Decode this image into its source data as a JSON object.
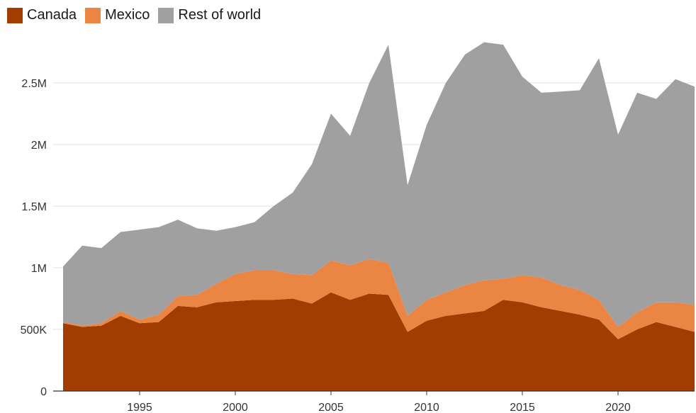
{
  "chart_data": {
    "type": "area",
    "stacked": true,
    "title": "",
    "xlabel": "",
    "ylabel": "",
    "x": [
      1991,
      1992,
      1993,
      1994,
      1995,
      1996,
      1997,
      1998,
      1999,
      2000,
      2001,
      2002,
      2003,
      2004,
      2005,
      2006,
      2007,
      2008,
      2009,
      2010,
      2011,
      2012,
      2013,
      2014,
      2015,
      2016,
      2017,
      2018,
      2019,
      2020,
      2021,
      2022,
      2023,
      2024
    ],
    "xlim": [
      1991,
      2024
    ],
    "ylim": [
      0,
      2800000
    ],
    "x_ticks": [
      {
        "value": 1995,
        "label": "1995"
      },
      {
        "value": 2000,
        "label": "2000"
      },
      {
        "value": 2005,
        "label": "2005"
      },
      {
        "value": 2010,
        "label": "2010"
      },
      {
        "value": 2015,
        "label": "2015"
      },
      {
        "value": 2020,
        "label": "2020"
      }
    ],
    "y_ticks": [
      {
        "value": 0,
        "label": "0"
      },
      {
        "value": 500000,
        "label": "500K"
      },
      {
        "value": 1000000,
        "label": "1M"
      },
      {
        "value": 1500000,
        "label": "1.5M"
      },
      {
        "value": 2000000,
        "label": "2M"
      },
      {
        "value": 2500000,
        "label": "2.5M"
      }
    ],
    "grid": true,
    "legend_position": "top-left",
    "series": [
      {
        "name": "Canada",
        "color": "#a33c00",
        "values": [
          550000,
          520000,
          530000,
          610000,
          550000,
          560000,
          690000,
          680000,
          720000,
          730000,
          740000,
          740000,
          750000,
          710000,
          800000,
          740000,
          790000,
          780000,
          480000,
          570000,
          610000,
          630000,
          650000,
          740000,
          720000,
          680000,
          650000,
          620000,
          580000,
          420000,
          500000,
          560000,
          520000,
          480000
        ]
      },
      {
        "name": "Mexico",
        "color": "#eb8544",
        "values": [
          10000,
          10000,
          20000,
          40000,
          30000,
          60000,
          80000,
          100000,
          150000,
          220000,
          240000,
          240000,
          200000,
          230000,
          260000,
          280000,
          280000,
          260000,
          130000,
          170000,
          190000,
          230000,
          250000,
          170000,
          220000,
          240000,
          210000,
          200000,
          160000,
          100000,
          140000,
          160000,
          200000,
          220000
        ]
      },
      {
        "name": "Rest of world",
        "color": "#a0a0a0",
        "values": [
          450000,
          650000,
          610000,
          640000,
          730000,
          710000,
          620000,
          540000,
          430000,
          380000,
          390000,
          520000,
          660000,
          900000,
          1190000,
          1050000,
          1430000,
          1770000,
          1060000,
          1420000,
          1700000,
          1870000,
          1930000,
          1900000,
          1610000,
          1500000,
          1570000,
          1620000,
          1960000,
          1560000,
          1780000,
          1650000,
          1810000,
          1770000
        ]
      }
    ]
  }
}
